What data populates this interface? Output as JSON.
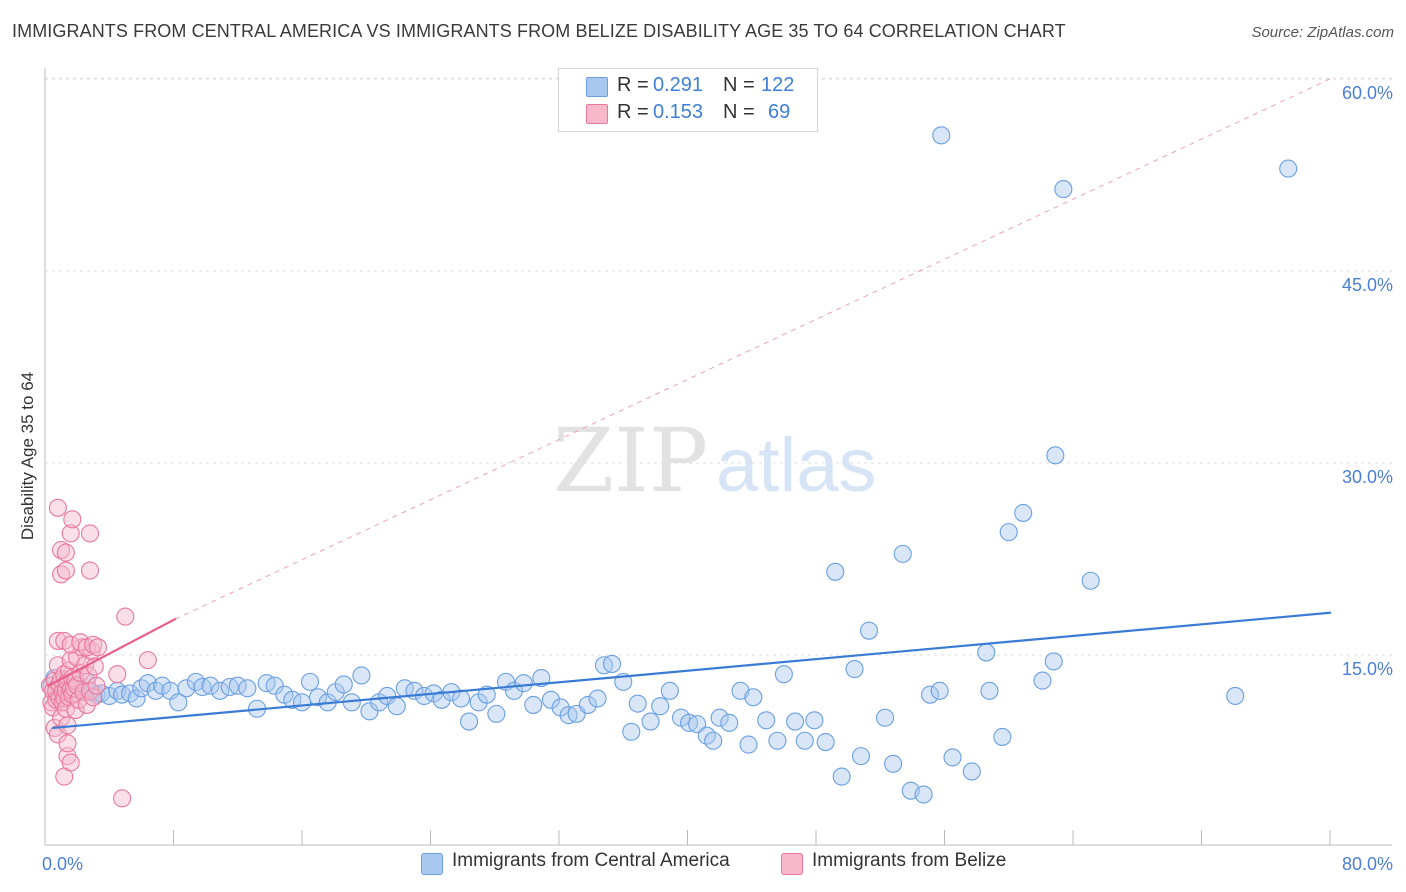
{
  "title": "IMMIGRANTS FROM CENTRAL AMERICA VS IMMIGRANTS FROM BELIZE DISABILITY AGE 35 TO 64 CORRELATION CHART",
  "source": "Source: ZipAtlas.com",
  "watermark": {
    "part1": "ZIP",
    "part2": "atlas"
  },
  "legend": {
    "rows": [
      {
        "r_label": "R =",
        "r_value": "0.291",
        "n_label": "N =",
        "n_value": "122",
        "color": "#a9c8f0"
      },
      {
        "r_label": "R =",
        "r_value": "0.153",
        "n_label": "N =",
        "n_value": "69",
        "color": "#f7b8cb"
      }
    ]
  },
  "bottom_legend": [
    "Immigrants from Central America",
    "Immigrants from Belize"
  ],
  "chart_data": {
    "type": "scatter",
    "title": "IMMIGRANTS FROM CENTRAL AMERICA VS IMMIGRANTS FROM BELIZE DISABILITY AGE 35 TO 64 CORRELATION CHART",
    "xlabel": "",
    "ylabel": "Disability Age 35 to 64",
    "xlim": [
      0,
      80
    ],
    "ylim": [
      0,
      63
    ],
    "x_tick_labels": [
      "0.0%",
      "80.0%"
    ],
    "y_ticks": [
      15,
      30,
      45,
      60
    ],
    "y_tick_labels": [
      "15.0%",
      "30.0%",
      "45.0%",
      "60.0%"
    ],
    "grid": true,
    "legend_position": "top-center",
    "series": [
      {
        "name": "Immigrants from Central America",
        "color": "#a9c8f0",
        "stroke": "#6b9fe0",
        "r": 0.291,
        "n": 122,
        "trend": {
          "x": [
            0.5,
            80
          ],
          "y": [
            9.3,
            18.3
          ],
          "color": "#3a7bd5"
        },
        "points": [
          [
            0.4,
            12.6
          ],
          [
            0.6,
            13.2
          ],
          [
            0.8,
            11.8
          ],
          [
            1.0,
            12.1
          ],
          [
            1.2,
            13.0
          ],
          [
            1.4,
            12.3
          ],
          [
            1.7,
            11.9
          ],
          [
            2.0,
            12.7
          ],
          [
            2.3,
            12.2
          ],
          [
            2.6,
            12.9
          ],
          [
            2.9,
            12.1
          ],
          [
            3.2,
            11.9
          ],
          [
            3.5,
            12.0
          ],
          [
            4.0,
            11.8
          ],
          [
            4.5,
            12.2
          ],
          [
            4.8,
            11.9
          ],
          [
            5.3,
            12.0
          ],
          [
            5.7,
            11.6
          ],
          [
            6.0,
            12.4
          ],
          [
            6.4,
            12.8
          ],
          [
            6.9,
            12.2
          ],
          [
            7.3,
            12.6
          ],
          [
            7.8,
            12.2
          ],
          [
            8.3,
            11.3
          ],
          [
            8.8,
            12.4
          ],
          [
            9.4,
            12.9
          ],
          [
            9.8,
            12.5
          ],
          [
            10.3,
            12.6
          ],
          [
            10.9,
            12.2
          ],
          [
            11.5,
            12.5
          ],
          [
            12.0,
            12.6
          ],
          [
            12.6,
            12.4
          ],
          [
            13.2,
            10.8
          ],
          [
            13.8,
            12.8
          ],
          [
            14.3,
            12.6
          ],
          [
            14.9,
            11.9
          ],
          [
            15.4,
            11.5
          ],
          [
            16.0,
            11.3
          ],
          [
            16.5,
            12.9
          ],
          [
            17.0,
            11.7
          ],
          [
            17.6,
            11.3
          ],
          [
            18.1,
            12.1
          ],
          [
            18.6,
            12.7
          ],
          [
            19.1,
            11.3
          ],
          [
            19.7,
            13.4
          ],
          [
            20.2,
            10.6
          ],
          [
            20.8,
            11.3
          ],
          [
            21.3,
            11.8
          ],
          [
            21.9,
            11.0
          ],
          [
            22.4,
            12.4
          ],
          [
            23.0,
            12.2
          ],
          [
            23.6,
            11.8
          ],
          [
            24.2,
            12.0
          ],
          [
            24.7,
            11.5
          ],
          [
            25.3,
            12.1
          ],
          [
            25.9,
            11.6
          ],
          [
            26.4,
            9.8
          ],
          [
            27.0,
            11.3
          ],
          [
            27.5,
            11.9
          ],
          [
            28.1,
            10.4
          ],
          [
            28.7,
            12.9
          ],
          [
            29.2,
            12.2
          ],
          [
            29.8,
            12.8
          ],
          [
            30.4,
            11.1
          ],
          [
            30.9,
            13.2
          ],
          [
            31.5,
            11.5
          ],
          [
            32.1,
            10.9
          ],
          [
            32.6,
            10.3
          ],
          [
            33.1,
            10.4
          ],
          [
            33.8,
            11.1
          ],
          [
            34.4,
            11.6
          ],
          [
            34.8,
            14.2
          ],
          [
            35.3,
            14.3
          ],
          [
            36.0,
            12.9
          ],
          [
            36.5,
            9.0
          ],
          [
            36.9,
            11.2
          ],
          [
            37.7,
            9.8
          ],
          [
            38.3,
            11.0
          ],
          [
            38.9,
            12.2
          ],
          [
            39.6,
            10.1
          ],
          [
            40.1,
            9.7
          ],
          [
            40.6,
            9.6
          ],
          [
            41.2,
            8.7
          ],
          [
            41.6,
            8.3
          ],
          [
            42.0,
            10.1
          ],
          [
            42.6,
            9.7
          ],
          [
            43.3,
            12.2
          ],
          [
            43.8,
            8.0
          ],
          [
            44.1,
            11.7
          ],
          [
            44.9,
            9.9
          ],
          [
            45.6,
            8.3
          ],
          [
            46.0,
            13.5
          ],
          [
            46.7,
            9.8
          ],
          [
            47.3,
            8.3
          ],
          [
            47.9,
            9.9
          ],
          [
            48.6,
            8.2
          ],
          [
            49.2,
            21.5
          ],
          [
            49.6,
            5.5
          ],
          [
            50.4,
            13.9
          ],
          [
            50.8,
            7.1
          ],
          [
            51.3,
            16.9
          ],
          [
            52.3,
            10.1
          ],
          [
            52.8,
            6.5
          ],
          [
            53.4,
            22.9
          ],
          [
            53.9,
            4.4
          ],
          [
            54.7,
            4.1
          ],
          [
            55.1,
            11.9
          ],
          [
            55.7,
            12.2
          ],
          [
            55.8,
            55.6
          ],
          [
            56.5,
            7.0
          ],
          [
            57.7,
            5.9
          ],
          [
            58.6,
            15.2
          ],
          [
            58.8,
            12.2
          ],
          [
            59.6,
            8.6
          ],
          [
            60.0,
            24.6
          ],
          [
            60.9,
            26.1
          ],
          [
            62.1,
            13.0
          ],
          [
            62.8,
            14.5
          ],
          [
            62.9,
            30.6
          ],
          [
            63.4,
            51.4
          ],
          [
            65.1,
            20.8
          ],
          [
            74.1,
            11.8
          ],
          [
            77.4,
            53.0
          ]
        ]
      },
      {
        "name": "Immigrants from Belize",
        "color": "#f7b8cb",
        "stroke": "#e8789c",
        "r": 0.153,
        "n": 69,
        "trend": {
          "x": [
            0.2,
            8.1
          ],
          "y": [
            12.6,
            17.8
          ],
          "color": "#e8608c",
          "extension_to": [
            80,
            60.0
          ]
        },
        "points": [
          [
            0.3,
            12.6
          ],
          [
            0.4,
            11.3
          ],
          [
            0.5,
            10.9
          ],
          [
            0.5,
            12.2
          ],
          [
            0.6,
            9.3
          ],
          [
            0.6,
            13.0
          ],
          [
            0.7,
            11.5
          ],
          [
            0.7,
            12.2
          ],
          [
            0.8,
            8.8
          ],
          [
            0.8,
            14.2
          ],
          [
            0.9,
            11.6
          ],
          [
            0.9,
            12.7
          ],
          [
            1.0,
            10.1
          ],
          [
            1.0,
            13.1
          ],
          [
            1.1,
            11.3
          ],
          [
            1.1,
            12.1
          ],
          [
            1.2,
            11.6
          ],
          [
            1.2,
            13.5
          ],
          [
            1.3,
            10.8
          ],
          [
            1.3,
            12.2
          ],
          [
            1.4,
            9.5
          ],
          [
            1.4,
            12.9
          ],
          [
            1.5,
            11.7
          ],
          [
            1.5,
            13.8
          ],
          [
            1.6,
            12.3
          ],
          [
            1.6,
            14.6
          ],
          [
            1.7,
            11.9
          ],
          [
            1.7,
            13.2
          ],
          [
            1.8,
            12.4
          ],
          [
            1.9,
            10.7
          ],
          [
            1.9,
            13.0
          ],
          [
            2.0,
            12.6
          ],
          [
            2.0,
            14.8
          ],
          [
            2.1,
            11.5
          ],
          [
            2.2,
            13.6
          ],
          [
            2.3,
            15.6
          ],
          [
            2.4,
            12.1
          ],
          [
            2.5,
            14.2
          ],
          [
            2.6,
            11.1
          ],
          [
            2.7,
            13.4
          ],
          [
            2.8,
            12.2
          ],
          [
            2.9,
            15.3
          ],
          [
            3.0,
            11.7
          ],
          [
            3.1,
            14.1
          ],
          [
            3.2,
            12.6
          ],
          [
            0.8,
            16.1
          ],
          [
            1.2,
            16.1
          ],
          [
            1.6,
            15.8
          ],
          [
            2.2,
            16.0
          ],
          [
            2.6,
            15.6
          ],
          [
            3.0,
            15.8
          ],
          [
            3.3,
            15.6
          ],
          [
            0.8,
            26.5
          ],
          [
            1.0,
            23.2
          ],
          [
            1.0,
            21.3
          ],
          [
            1.3,
            23.0
          ],
          [
            1.3,
            21.6
          ],
          [
            1.6,
            24.5
          ],
          [
            1.7,
            25.6
          ],
          [
            2.8,
            24.5
          ],
          [
            2.8,
            21.6
          ],
          [
            1.2,
            5.5
          ],
          [
            1.4,
            7.1
          ],
          [
            1.4,
            8.1
          ],
          [
            1.6,
            6.6
          ],
          [
            4.5,
            13.5
          ],
          [
            5.0,
            18.0
          ],
          [
            6.4,
            14.6
          ],
          [
            4.8,
            3.8
          ]
        ]
      }
    ]
  }
}
